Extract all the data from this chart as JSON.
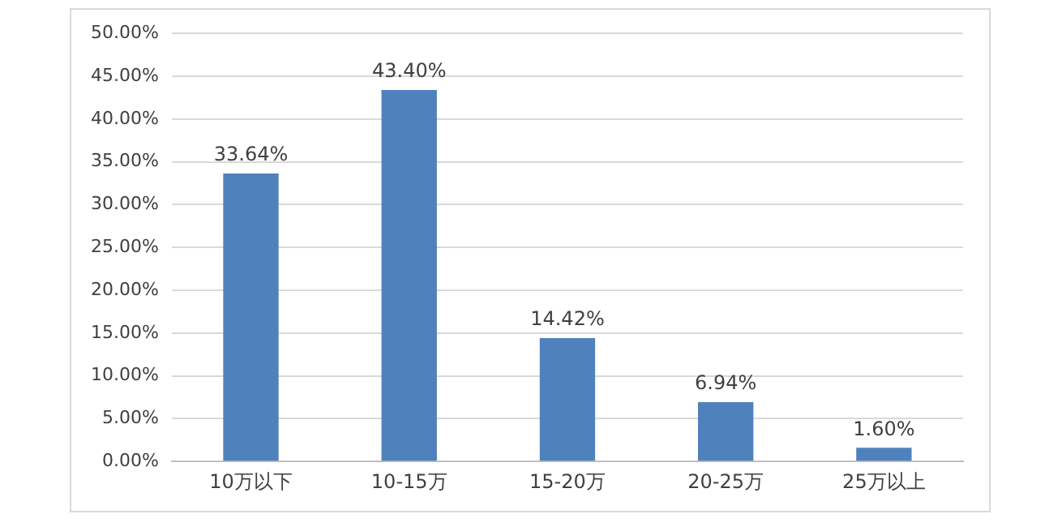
{
  "chart_data": {
    "type": "bar",
    "categories": [
      "10万以下",
      "10-15万",
      "15-20万",
      "20-25万",
      "25万以上"
    ],
    "values": [
      33.64,
      43.4,
      14.42,
      6.94,
      1.6
    ],
    "value_labels": [
      "33.64%",
      "43.40%",
      "14.42%",
      "6.94%",
      "1.60%"
    ],
    "color": "#4f81bd",
    "ylim": [
      0,
      50
    ],
    "yticks": [
      {
        "value": 0,
        "label": "0.00%"
      },
      {
        "value": 5,
        "label": "5.00%"
      },
      {
        "value": 10,
        "label": "10.00%"
      },
      {
        "value": 15,
        "label": "15.00%"
      },
      {
        "value": 20,
        "label": "20.00%"
      },
      {
        "value": 25,
        "label": "25.00%"
      },
      {
        "value": 30,
        "label": "30.00%"
      },
      {
        "value": 35,
        "label": "35.00%"
      },
      {
        "value": 40,
        "label": "40.00%"
      },
      {
        "value": 45,
        "label": "45.00%"
      },
      {
        "value": 50,
        "label": "50.00%"
      }
    ],
    "grid": "y"
  }
}
